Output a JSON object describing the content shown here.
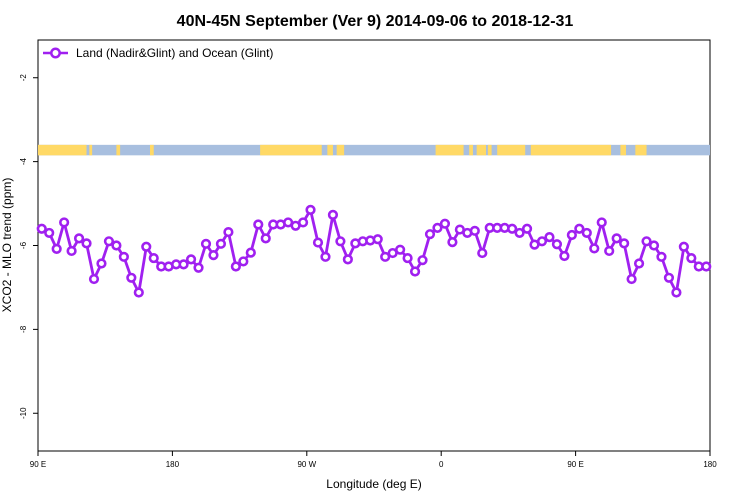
{
  "chart_data": {
    "type": "line",
    "title": "40N-45N September (Ver 9)   2014-09-06 to 2018-12-31",
    "xlabel": "Longitude (deg E)",
    "ylabel": "XCO2 - MLO trend (ppm)",
    "xlim": [
      90,
      450
    ],
    "ylim": [
      -10.9,
      -1.1
    ],
    "grid": false,
    "legend_position": "top-left",
    "x_ticks": [
      {
        "value": 90,
        "label": "90 E"
      },
      {
        "value": 162,
        "label": "180"
      },
      {
        "value": 234,
        "label": "90 W"
      },
      {
        "value": 306,
        "label": "0"
      },
      {
        "value": 378,
        "label": "90 E"
      },
      {
        "value": 450,
        "label": "180"
      }
    ],
    "y_ticks": [
      {
        "value": -2,
        "label": "-2"
      },
      {
        "value": -4,
        "label": "-4"
      },
      {
        "value": -6,
        "label": "-6"
      },
      {
        "value": -8,
        "label": "-8"
      },
      {
        "value": -10,
        "label": "-10"
      }
    ],
    "land_ocean_strip": {
      "y_range": [
        -3.6,
        -3.85
      ],
      "land_color": "#ffd966",
      "ocean_color": "#a8bfdf",
      "land_segments": [
        [
          90,
          116
        ],
        [
          117.5,
          119
        ],
        [
          132,
          134
        ],
        [
          150,
          152
        ],
        [
          209,
          242
        ],
        [
          245,
          248
        ],
        [
          250,
          254
        ],
        [
          303,
          318
        ],
        [
          321,
          323
        ],
        [
          325,
          330
        ],
        [
          331,
          333
        ],
        [
          336,
          351
        ],
        [
          354,
          397
        ],
        [
          402,
          405
        ],
        [
          410,
          416
        ]
      ]
    },
    "series": [
      {
        "name": "Land (Nadir&Glint) and Ocean (Glint)",
        "color": "#a020f0",
        "x": [
          92,
          96,
          100,
          104,
          108,
          112,
          116,
          120,
          124,
          128,
          132,
          136,
          140,
          144,
          148,
          152,
          156,
          160,
          164,
          168,
          172,
          176,
          180,
          184,
          188,
          192,
          196,
          200,
          204,
          208,
          212,
          216,
          220,
          224,
          228,
          232,
          236,
          240,
          244,
          248,
          252,
          256,
          260,
          264,
          268,
          272,
          276,
          280,
          284,
          288,
          292,
          296,
          300,
          304,
          308,
          312,
          316,
          320,
          324,
          328,
          332,
          336,
          340,
          344,
          348,
          352,
          356,
          360,
          364,
          368,
          372,
          376,
          380,
          384,
          388,
          392,
          396,
          400,
          404,
          408,
          412,
          416,
          420,
          424,
          428,
          432,
          436,
          440,
          444,
          448
        ],
        "values": [
          -5.6,
          -5.7,
          -6.08,
          -5.45,
          -6.13,
          -5.83,
          -5.95,
          -6.8,
          -6.43,
          -5.9,
          -6.0,
          -6.27,
          -6.77,
          -7.12,
          -6.03,
          -6.3,
          -6.5,
          -6.5,
          -6.45,
          -6.45,
          -6.33,
          -6.53,
          -5.96,
          -6.23,
          -5.96,
          -5.68,
          -6.5,
          -6.38,
          -6.17,
          -5.5,
          -5.83,
          -5.5,
          -5.5,
          -5.45,
          -5.53,
          -5.45,
          -5.15,
          -5.93,
          -6.27,
          -5.27,
          -5.9,
          -6.33,
          -5.95,
          -5.9,
          -5.88,
          -5.85,
          -6.27,
          -6.18,
          -6.1,
          -6.3,
          -6.62,
          -6.35,
          -5.73,
          -5.58,
          -5.48,
          -5.92,
          -5.62,
          -5.7,
          -5.65,
          -6.18,
          -5.58,
          -5.58,
          -5.58,
          -5.6,
          -5.7,
          -5.6,
          -5.98,
          -5.9,
          -5.8,
          -5.97,
          -6.25,
          -5.75,
          -5.6,
          -5.7,
          -6.07,
          -5.45,
          -6.13,
          -5.83,
          -5.95,
          -6.8,
          -6.43,
          -5.9,
          -6.0,
          -6.27,
          -6.77,
          -7.12,
          -6.03,
          -6.3,
          -6.5,
          -6.5
        ]
      }
    ]
  }
}
